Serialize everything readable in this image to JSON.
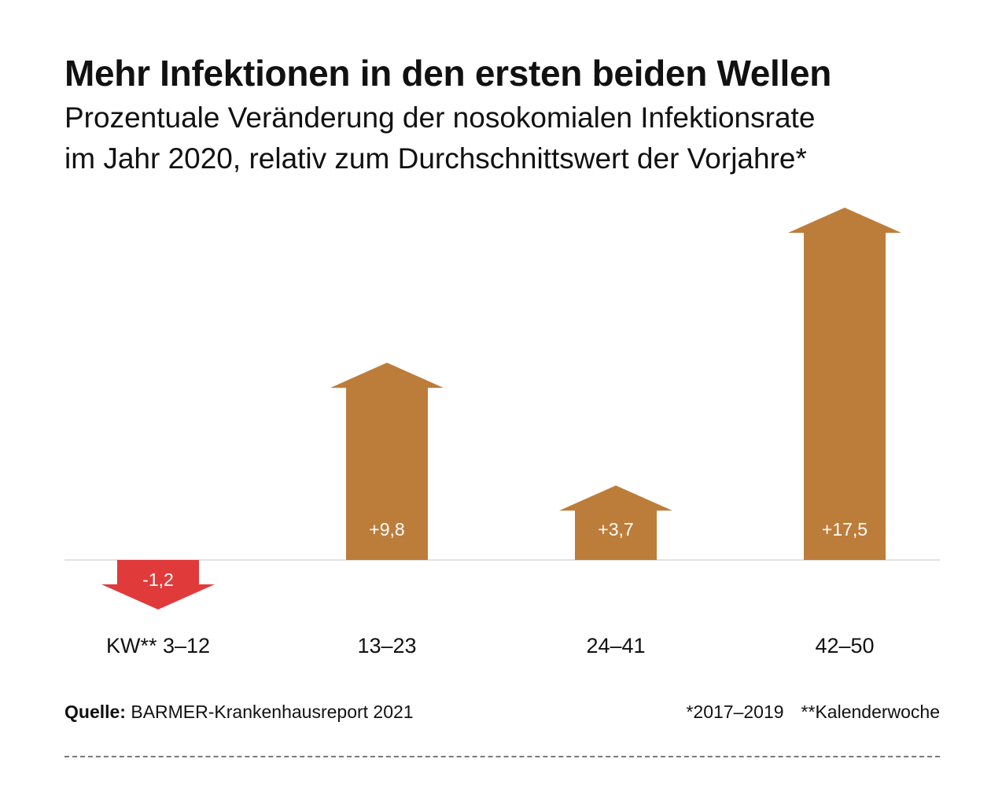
{
  "header": {
    "title": "Mehr Infektionen in den ersten beiden Wellen",
    "subtitle_line1": "Prozentuale Veränderung der nosokomialen Infektionsrate",
    "subtitle_line2": "im Jahr 2020, relativ zum Durchschnittswert der Vorjahre*"
  },
  "chart_data": {
    "type": "bar",
    "title": "Mehr Infektionen in den ersten beiden Wellen",
    "subtitle": "Prozentuale Veränderung der nosokomialen Infektionsrate im Jahr 2020, relativ zum Durchschnittswert der Vorjahre*",
    "categories": [
      "KW** 3–12",
      "13–23",
      "24–41",
      "42–50"
    ],
    "values": [
      -1.2,
      9.8,
      3.7,
      17.5
    ],
    "value_labels": [
      "-1,2",
      "+9,8",
      "+3,7",
      "+17,5"
    ],
    "xlabel": "",
    "ylabel": "",
    "ylim": [
      -2.5,
      19
    ],
    "grid": false,
    "colors": {
      "positive": "#bd7d3a",
      "negative": "#e03a3a",
      "baseline": "#d8d8d8",
      "label_text": "#ffffff"
    }
  },
  "footer": {
    "source_label": "Quelle:",
    "source_text": " BARMER-Krankenhausreport 2021",
    "note1": "*2017–2019",
    "note2": "**Kalenderwoche"
  }
}
